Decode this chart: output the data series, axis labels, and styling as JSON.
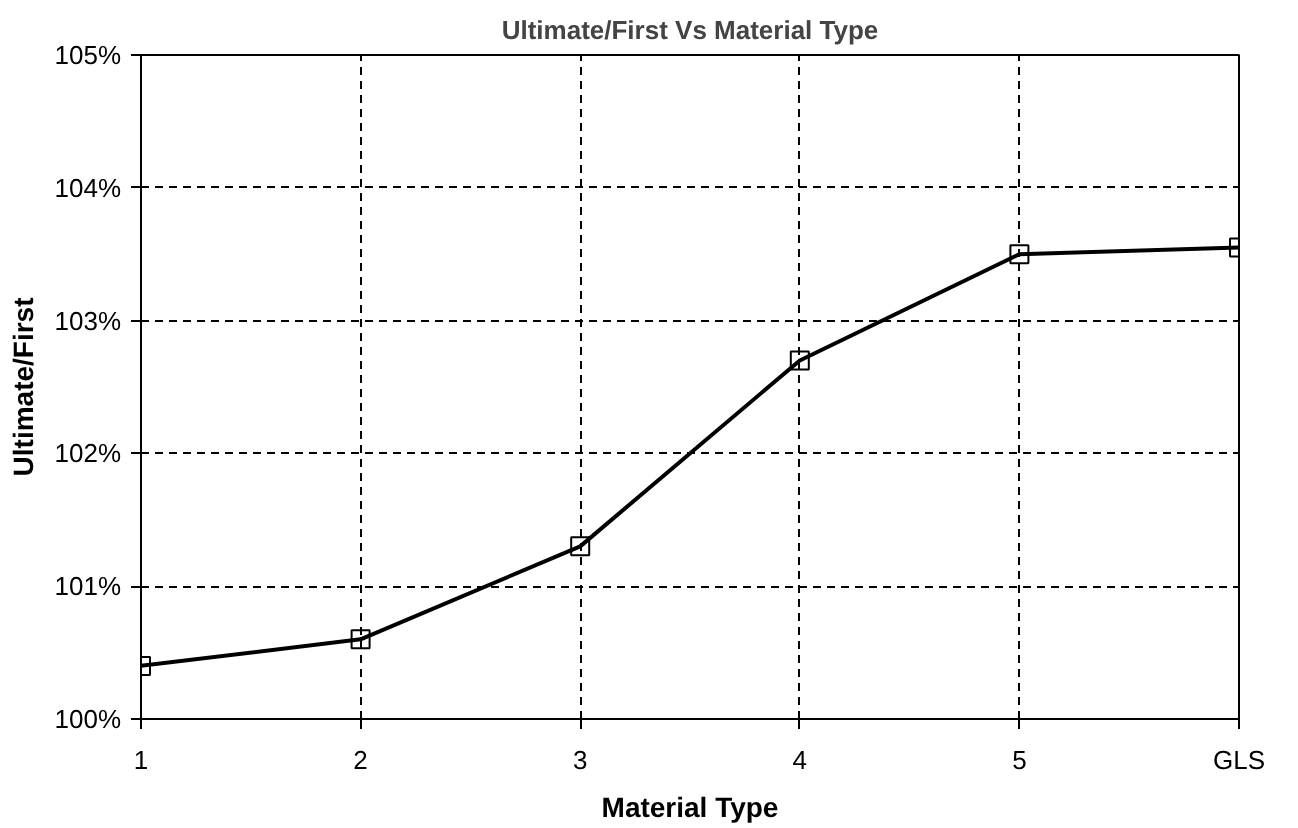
{
  "chart_data": {
    "type": "line",
    "title": "Ultimate/First Vs Material Type",
    "xlabel": "Material Type",
    "ylabel": "Ultimate/First",
    "categories": [
      "1",
      "2",
      "3",
      "4",
      "5",
      "GLS"
    ],
    "series": [
      {
        "color": "#000000",
        "values": [
          100.4,
          100.6,
          101.3,
          102.7,
          103.5,
          103.55
        ]
      }
    ],
    "ylim": [
      100,
      105
    ],
    "yticks": [
      {
        "value": 100,
        "label": "100%"
      },
      {
        "value": 101,
        "label": "101%"
      },
      {
        "value": 102,
        "label": "102%"
      },
      {
        "value": 103,
        "label": "103%"
      },
      {
        "value": 104,
        "label": "104%"
      },
      {
        "value": 105,
        "label": "105%"
      }
    ],
    "grid": true,
    "marker": "square",
    "line_style": "solid"
  }
}
